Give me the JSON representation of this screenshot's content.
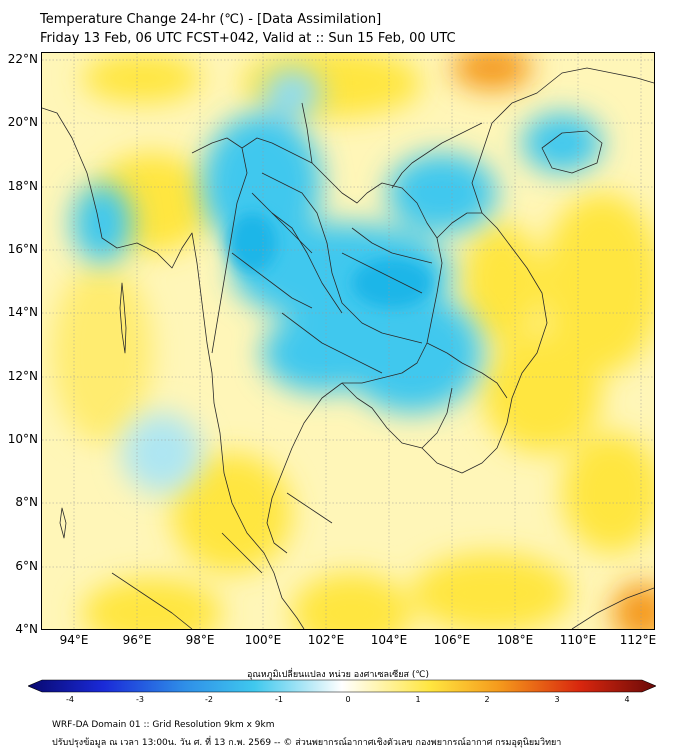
{
  "title": {
    "line1": "Temperature Change 24-hr (℃) - [Data Assimilation]",
    "line2": "Friday 13 Feb, 06 UTC FCST+042, Valid at :: Sun 15 Feb, 00 UTC"
  },
  "map": {
    "lat_labels": [
      "22°N",
      "20°N",
      "18°N",
      "16°N",
      "14°N",
      "12°N",
      "10°N",
      "8°N",
      "6°N",
      "4°N"
    ],
    "lon_labels": [
      "94°E",
      "96°E",
      "98°E",
      "100°E",
      "102°E",
      "104°E",
      "106°E",
      "108°E",
      "110°E",
      "112°E"
    ],
    "lat_range": [
      4,
      22.2
    ],
    "lon_range": [
      93,
      112.4
    ],
    "colors": {
      "cool": "#3fc8ee",
      "warm": "#ffe640",
      "hot": "#f59a1c",
      "neutral": "#fff6b8",
      "border": "#2a2a2a"
    }
  },
  "colorbar": {
    "title": "อุณหภูมิเปลี่ยนแปลง หน่วย องศาเซลเซียส (℃)",
    "tick_labels": [
      "-4",
      "-3",
      "-2",
      "-1",
      "0",
      "1",
      "2",
      "3",
      "4"
    ],
    "range": [
      -4,
      4
    ]
  },
  "footer": {
    "line1": "WRF-DA Domain 01 :: Grid Resolution 9km x 9km",
    "line2": "ปรับปรุงข้อมูล ณ เวลา 13:00น. วัน ศ. ที่ 13 ก.พ. 2569 -- © ส่วนพยากรณ์อากาศเชิงตัวเลข กองพยากรณ์อากาศ กรมอุตุนิยมวิทยา"
  }
}
